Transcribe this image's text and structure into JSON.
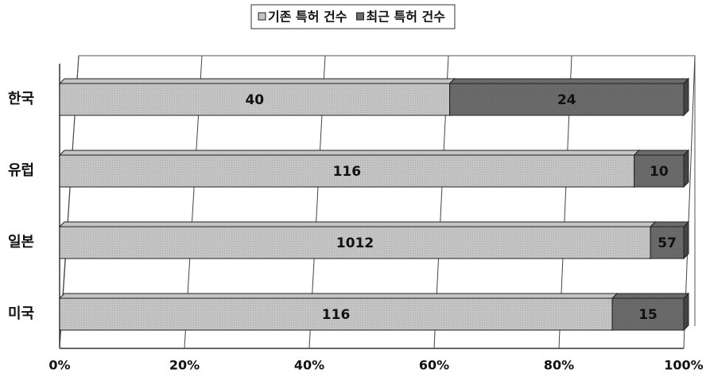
{
  "chart_data": {
    "type": "bar",
    "orientation": "horizontal",
    "stacking": "percent",
    "categories": [
      "한국",
      "유럽",
      "일본",
      "미국"
    ],
    "series": [
      {
        "name": "기존 특허 건수",
        "color": "#c4c4c4",
        "values": [
          40,
          116,
          1012,
          116
        ]
      },
      {
        "name": "최근 특허 건수",
        "color": "#6a6a6a",
        "values": [
          24,
          10,
          57,
          15
        ]
      }
    ],
    "xlim": [
      0,
      100
    ],
    "xticks": [
      {
        "value": 0,
        "label": "0%"
      },
      {
        "value": 20,
        "label": "20%"
      },
      {
        "value": 40,
        "label": "40%"
      },
      {
        "value": 60,
        "label": "60%"
      },
      {
        "value": 80,
        "label": "80%"
      },
      {
        "value": 100,
        "label": "100%"
      }
    ],
    "grid": true,
    "legend": "top"
  }
}
